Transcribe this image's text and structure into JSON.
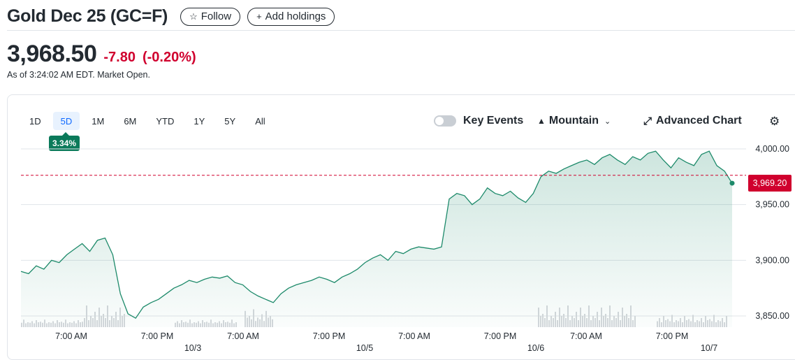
{
  "header": {
    "title": "Gold Dec 25 (GC=F)",
    "follow_label": "Follow",
    "add_holdings_label": "Add holdings"
  },
  "quote": {
    "price": "3,968.50",
    "change": "-7.80",
    "change_pct": "(-0.20%)",
    "as_of": "As of 3:24:02 AM EDT. Market Open."
  },
  "toolbar": {
    "ranges": [
      "1D",
      "5D",
      "1M",
      "6M",
      "YTD",
      "1Y",
      "5Y",
      "All"
    ],
    "active_range": "5D",
    "range_change": "3.34%",
    "key_events_label": "Key Events",
    "chart_type_label": "Mountain",
    "advanced_chart_label": "Advanced Chart"
  },
  "chart_data": {
    "type": "area",
    "series": [
      {
        "values": [
          3890,
          3888,
          3895,
          3892,
          3900,
          3898,
          3905,
          3910,
          3915,
          3908,
          3918,
          3920,
          3905,
          3870,
          3852,
          3848,
          3858,
          3862,
          3865,
          3870,
          3875,
          3878,
          3882,
          3880,
          3883,
          3885,
          3884,
          3886,
          3880,
          3878,
          3872,
          3868,
          3865,
          3862,
          3870,
          3875,
          3878,
          3880,
          3882,
          3885,
          3883,
          3880,
          3885,
          3888,
          3892,
          3898,
          3902,
          3905,
          3900,
          3908,
          3906,
          3910,
          3912,
          3911,
          3910,
          3912,
          3955,
          3960,
          3958,
          3950,
          3955,
          3965,
          3960,
          3958,
          3962,
          3956,
          3952,
          3960,
          3975,
          3980,
          3978,
          3982,
          3985,
          3988,
          3990,
          3986,
          3992,
          3995,
          3990,
          3986,
          3993,
          3990,
          3996,
          3998,
          3990,
          3983,
          3992,
          3988,
          3985,
          3995,
          3998,
          3985,
          3980,
          3969.2
        ]
      }
    ],
    "x_ticks": [
      "7:00 AM",
      "7:00 PM",
      "7:00 AM",
      "7:00 PM",
      "7:00 AM",
      "7:00 PM",
      "7:00 AM",
      "7:00 PM"
    ],
    "date_labels": [
      "10/3",
      "10/5",
      "10/6",
      "10/7"
    ],
    "y_ticks": [
      "4,000.00",
      "3,950.00",
      "3,900.00",
      "3,850.00"
    ],
    "ylim": [
      3840,
      4005
    ],
    "reference_line": 3976.3,
    "last_value_label": "3,969.20",
    "colors": {
      "line": "#1d8a6a",
      "fill": "#1d8a6a",
      "reference": "#d0002e",
      "grid": "#e0e4e9"
    }
  }
}
